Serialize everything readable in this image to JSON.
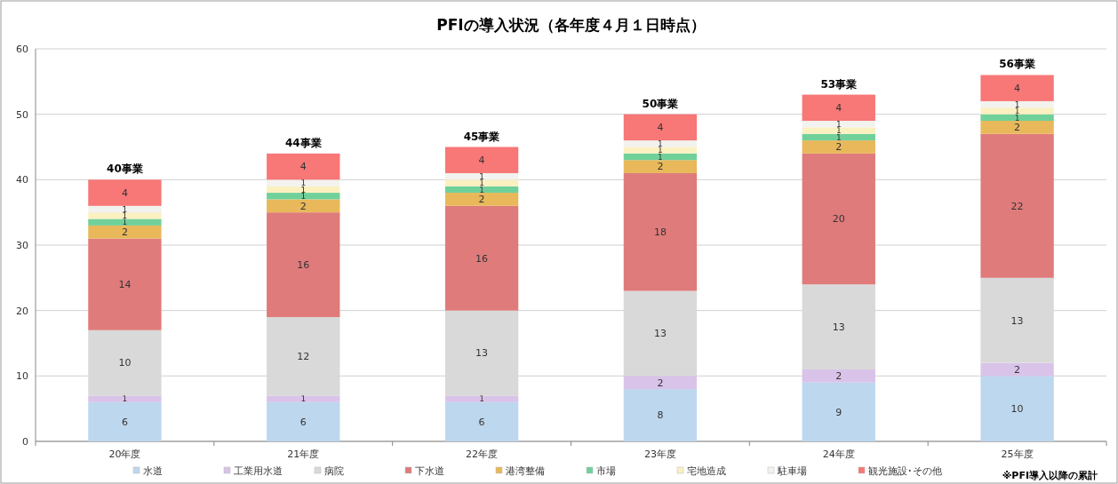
{
  "chart_data": {
    "type": "bar",
    "title": "PFIの導入状況（各年度４月１日時点）",
    "stacked": true,
    "data_labels": true,
    "grid": "y",
    "legend": "bottom",
    "categories": [
      "20年度",
      "21年度",
      "22年度",
      "23年度",
      "24年度",
      "25年度"
    ],
    "series": [
      {
        "name": "水道",
        "color": "#bdd7ee",
        "values": [
          6,
          6,
          6,
          8,
          9,
          10
        ]
      },
      {
        "name": "工業用水道",
        "color": "#d9c3e9",
        "values": [
          1,
          1,
          1,
          2,
          2,
          2
        ]
      },
      {
        "name": "病院",
        "color": "#d9d9d9",
        "values": [
          10,
          12,
          13,
          13,
          13,
          13
        ]
      },
      {
        "name": "下水道",
        "color": "#e07b7b",
        "values": [
          14,
          16,
          16,
          18,
          20,
          22
        ]
      },
      {
        "name": "港湾整備",
        "color": "#e8b85a",
        "values": [
          2,
          2,
          2,
          2,
          2,
          2
        ]
      },
      {
        "name": "市場",
        "color": "#70d09a",
        "values": [
          1,
          1,
          1,
          1,
          1,
          1
        ]
      },
      {
        "name": "宅地造成",
        "color": "#fbf0c0",
        "values": [
          1,
          1,
          1,
          1,
          1,
          1
        ]
      },
      {
        "name": "駐車場",
        "color": "#f2f2ee",
        "values": [
          1,
          1,
          1,
          1,
          1,
          1
        ]
      },
      {
        "name": "観光施設･その他",
        "color": "#f87777",
        "values": [
          4,
          4,
          4,
          4,
          4,
          4
        ]
      }
    ],
    "totals": [
      "40事業",
      "44事業",
      "45事業",
      "50事業",
      "53事業",
      "56事業"
    ],
    "ylim": [
      0,
      60
    ],
    "yticks": [
      0,
      10,
      20,
      30,
      40,
      50,
      60
    ],
    "annotations": [
      "※PFI導入以降の累計"
    ]
  }
}
